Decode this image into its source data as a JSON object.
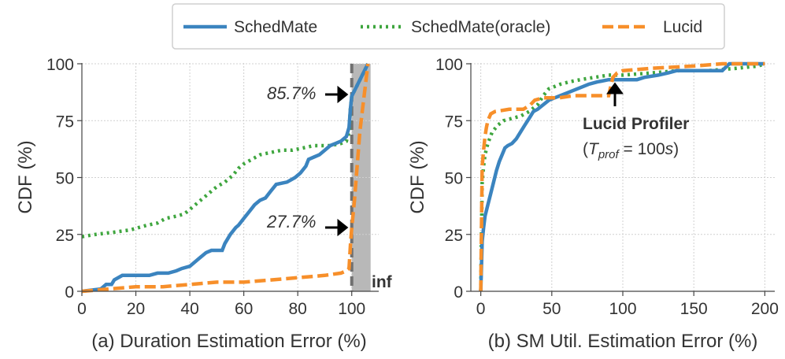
{
  "legend": {
    "entries": [
      {
        "name": "SchedMate",
        "color": "#3b84bf",
        "style": "solid"
      },
      {
        "name": "SchedMate(oracle)",
        "color": "#3fa63f",
        "style": "dotted"
      },
      {
        "name": "Lucid",
        "color": "#f78f2a",
        "style": "dashed"
      }
    ]
  },
  "chart_data": [
    {
      "type": "line",
      "title": "(a) Duration Estimation Error (%)",
      "xlabel": "",
      "ylabel": "CDF (%)",
      "xlim": [
        0,
        110
      ],
      "ylim": [
        0,
        100
      ],
      "xticks": [
        "0",
        "20",
        "40",
        "60",
        "80",
        "100"
      ],
      "yticks": [
        "0",
        "25",
        "50",
        "75",
        "100"
      ],
      "inf_label": "inf",
      "shaded_region": [
        100,
        107
      ],
      "annotations": {
        "upper": "85.7%",
        "lower": "27.7%"
      },
      "series": [
        {
          "name": "SchedMate",
          "points": [
            [
              0,
              0
            ],
            [
              7,
              1
            ],
            [
              9,
              3
            ],
            [
              11,
              3
            ],
            [
              12,
              5
            ],
            [
              15,
              7
            ],
            [
              25,
              7
            ],
            [
              28,
              8
            ],
            [
              32,
              8
            ],
            [
              35,
              9
            ],
            [
              37,
              10
            ],
            [
              40,
              11
            ],
            [
              42,
              13
            ],
            [
              44,
              15
            ],
            [
              46,
              17
            ],
            [
              48,
              18
            ],
            [
              52,
              18
            ],
            [
              53,
              21
            ],
            [
              55,
              25
            ],
            [
              57,
              28
            ],
            [
              58,
              29
            ],
            [
              60,
              32
            ],
            [
              62,
              35
            ],
            [
              64,
              38
            ],
            [
              66,
              40
            ],
            [
              68,
              41
            ],
            [
              70,
              44
            ],
            [
              72,
              47
            ],
            [
              76,
              48
            ],
            [
              79,
              50
            ],
            [
              81,
              52
            ],
            [
              83,
              55
            ],
            [
              84,
              58
            ],
            [
              86,
              59
            ],
            [
              88,
              60
            ],
            [
              90,
              62
            ],
            [
              92,
              64
            ],
            [
              94,
              65
            ],
            [
              96,
              66
            ],
            [
              98,
              68
            ],
            [
              99,
              72
            ],
            [
              99.5,
              80
            ],
            [
              100,
              85.7
            ],
            [
              106,
              100
            ]
          ]
        },
        {
          "name": "SchedMate(oracle)",
          "points": [
            [
              0,
              24
            ],
            [
              5,
              25
            ],
            [
              12,
              26
            ],
            [
              18,
              27
            ],
            [
              24,
              29
            ],
            [
              28,
              30
            ],
            [
              31,
              32
            ],
            [
              35,
              33
            ],
            [
              38,
              34
            ],
            [
              40,
              36
            ],
            [
              42,
              38
            ],
            [
              44,
              40
            ],
            [
              46,
              42
            ],
            [
              48,
              44
            ],
            [
              50,
              46
            ],
            [
              53,
              48
            ],
            [
              56,
              51
            ],
            [
              58,
              54
            ],
            [
              60,
              56
            ],
            [
              63,
              58
            ],
            [
              66,
              60
            ],
            [
              70,
              61
            ],
            [
              74,
              62
            ],
            [
              78,
              62
            ],
            [
              82,
              63
            ],
            [
              86,
              64
            ],
            [
              92,
              64
            ],
            [
              96,
              65
            ],
            [
              98,
              66
            ],
            [
              99,
              70
            ],
            [
              99.5,
              80
            ],
            [
              100,
              85.7
            ],
            [
              106,
              100
            ]
          ]
        },
        {
          "name": "Lucid",
          "points": [
            [
              0,
              0
            ],
            [
              10,
              1
            ],
            [
              20,
              2
            ],
            [
              30,
              2
            ],
            [
              40,
              3
            ],
            [
              50,
              4
            ],
            [
              60,
              4
            ],
            [
              70,
              5
            ],
            [
              80,
              6
            ],
            [
              90,
              7
            ],
            [
              96,
              8
            ],
            [
              98,
              9
            ],
            [
              99,
              10
            ],
            [
              99.5,
              20
            ],
            [
              100,
              27.7
            ],
            [
              101,
              40
            ],
            [
              102,
              55
            ],
            [
              103,
              70
            ],
            [
              104,
              80
            ],
            [
              105,
              90
            ],
            [
              106,
              100
            ]
          ]
        }
      ]
    },
    {
      "type": "line",
      "title": "(b) SM Util. Estimation Error (%)",
      "xlabel": "",
      "ylabel": "CDF (%)",
      "xlim": [
        -7,
        207
      ],
      "ylim": [
        0,
        100
      ],
      "xticks": [
        "0",
        "50",
        "100",
        "150",
        "200"
      ],
      "yticks": [
        "0",
        "25",
        "50",
        "75",
        "100"
      ],
      "annotation": {
        "title": "Lucid Profiler",
        "formula_var": "T",
        "formula_sub": "prof",
        "formula_rest": " = 100",
        "formula_unit": "s",
        "formula_open": "(",
        "formula_close": ")"
      },
      "series": [
        {
          "name": "SchedMate",
          "points": [
            [
              0,
              0
            ],
            [
              1,
              22
            ],
            [
              2,
              28
            ],
            [
              3,
              33
            ],
            [
              5,
              38
            ],
            [
              7,
              43
            ],
            [
              9,
              48
            ],
            [
              11,
              53
            ],
            [
              13,
              57
            ],
            [
              15,
              60
            ],
            [
              17,
              63
            ],
            [
              19,
              64
            ],
            [
              22,
              65
            ],
            [
              25,
              67
            ],
            [
              28,
              70
            ],
            [
              31,
              73
            ],
            [
              34,
              76
            ],
            [
              37,
              79
            ],
            [
              40,
              80
            ],
            [
              44,
              82
            ],
            [
              48,
              84
            ],
            [
              52,
              85
            ],
            [
              56,
              86
            ],
            [
              60,
              87
            ],
            [
              64,
              88
            ],
            [
              68,
              89
            ],
            [
              72,
              90
            ],
            [
              76,
              91
            ],
            [
              82,
              92
            ],
            [
              90,
              93
            ],
            [
              100,
              93
            ],
            [
              110,
              93
            ],
            [
              115,
              94
            ],
            [
              125,
              95
            ],
            [
              132,
              96
            ],
            [
              138,
              97
            ],
            [
              150,
              97
            ],
            [
              170,
              97
            ],
            [
              175,
              100
            ],
            [
              200,
              100
            ]
          ]
        },
        {
          "name": "SchedMate(oracle)",
          "points": [
            [
              0,
              0
            ],
            [
              1,
              48
            ],
            [
              2,
              55
            ],
            [
              3,
              60
            ],
            [
              5,
              65
            ],
            [
              8,
              70
            ],
            [
              12,
              73
            ],
            [
              16,
              75
            ],
            [
              22,
              76
            ],
            [
              28,
              77
            ],
            [
              34,
              79
            ],
            [
              40,
              82
            ],
            [
              44,
              86
            ],
            [
              48,
              89
            ],
            [
              52,
              90
            ],
            [
              56,
              91
            ],
            [
              62,
              92
            ],
            [
              70,
              93
            ],
            [
              80,
              94
            ],
            [
              90,
              95
            ],
            [
              100,
              95
            ],
            [
              120,
              96
            ],
            [
              140,
              97
            ],
            [
              160,
              97
            ],
            [
              180,
              98
            ],
            [
              195,
              99
            ],
            [
              200,
              100
            ]
          ]
        },
        {
          "name": "Lucid",
          "points": [
            [
              0,
              0
            ],
            [
              1,
              55
            ],
            [
              2,
              62
            ],
            [
              3,
              68
            ],
            [
              4,
              72
            ],
            [
              5,
              75
            ],
            [
              7,
              78
            ],
            [
              10,
              79
            ],
            [
              20,
              80
            ],
            [
              30,
              80
            ],
            [
              35,
              82
            ],
            [
              38,
              84
            ],
            [
              44,
              85
            ],
            [
              55,
              85
            ],
            [
              65,
              86
            ],
            [
              80,
              86
            ],
            [
              90,
              86
            ],
            [
              93,
              94
            ],
            [
              96,
              96
            ],
            [
              100,
              97
            ],
            [
              120,
              98
            ],
            [
              150,
              99
            ],
            [
              170,
              100
            ],
            [
              200,
              100
            ]
          ]
        }
      ]
    }
  ]
}
